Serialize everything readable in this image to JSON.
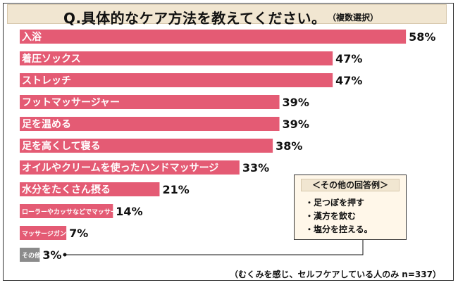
{
  "title": "Q.具体的なケア方法を教えてください。",
  "subtitle": "（複数選択）",
  "chart_data": {
    "type": "bar",
    "orientation": "horizontal",
    "categories": [
      "入浴",
      "着圧ソックス",
      "ストレッチ",
      "フットマッサージャー",
      "足を温める",
      "足を高くして寝る",
      "オイルやクリームを使ったハンドマッサージ",
      "水分をたくさん摂る",
      "ローラーやカッサなどでマッサージ",
      "マッサージガン",
      "その他"
    ],
    "values": [
      58,
      47,
      47,
      39,
      39,
      38,
      33,
      21,
      14,
      7,
      3
    ],
    "value_labels": [
      "58%",
      "47%",
      "47%",
      "39%",
      "39%",
      "38%",
      "33%",
      "21%",
      "14%",
      "7%",
      "3%"
    ],
    "colors": {
      "main": "#e45b74",
      "other": "#8b8b8b"
    },
    "xlim": [
      0,
      60
    ]
  },
  "callout": {
    "title": "＜その他の回答例＞",
    "items": [
      "・足つぼを押す",
      "・漢方を飲む",
      "・塩分を控える。"
    ]
  },
  "footnote": "（むくみを感じ、セルフケアしている人のみ n=337）"
}
